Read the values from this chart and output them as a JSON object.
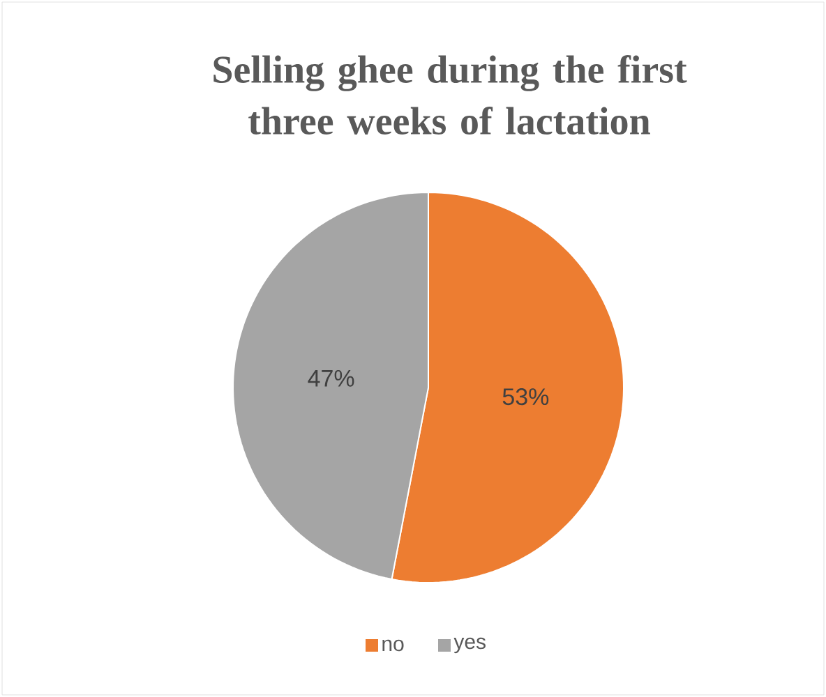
{
  "chart_data": {
    "type": "pie",
    "title": "Selling ghee during the first three weeks of lactation",
    "categories": [
      "no",
      "yes"
    ],
    "values": [
      53,
      47
    ],
    "colors": [
      "#ed7d31",
      "#a5a5a5"
    ],
    "value_labels": [
      "53%",
      "47%"
    ],
    "legend": "bottom"
  }
}
